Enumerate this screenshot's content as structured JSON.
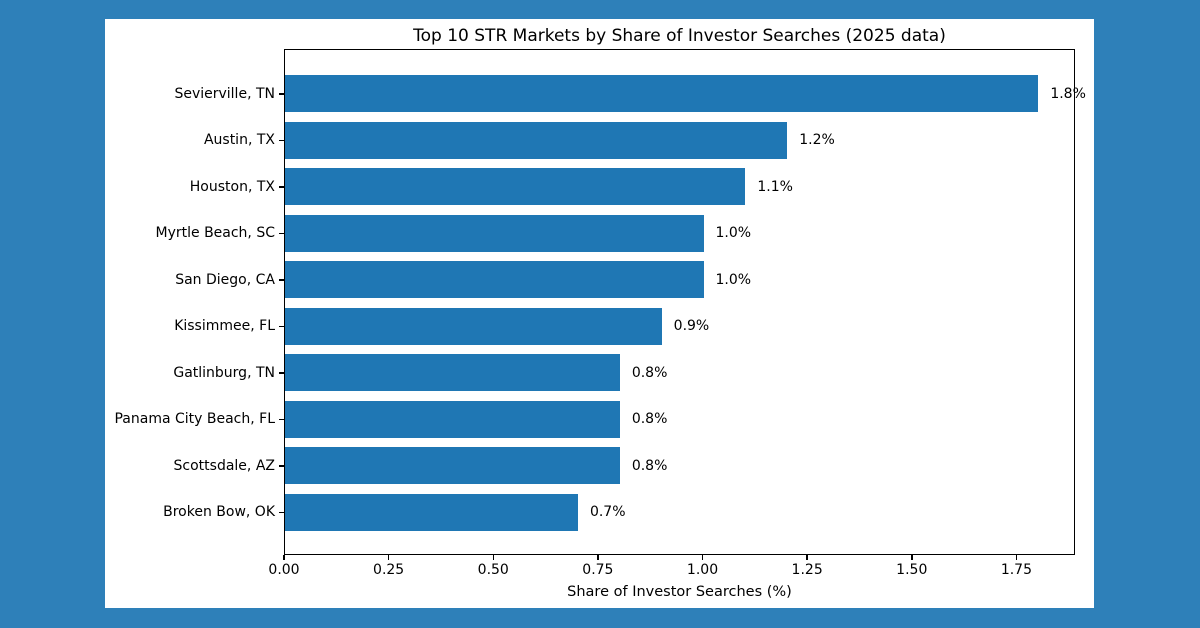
{
  "page": {
    "background_color": "#2e80b9",
    "card_color": "#ffffff",
    "text_color": "#000000",
    "axis_color": "#000000"
  },
  "chart_data": {
    "type": "bar",
    "orientation": "horizontal",
    "title": "Top 10 STR Markets by Share of Investor Searches (2025 data)",
    "xlabel": "Share of Investor Searches (%)",
    "ylabel": "",
    "categories": [
      "Sevierville, TN",
      "Austin, TX",
      "Houston, TX",
      "Myrtle Beach, SC",
      "San Diego, CA",
      "Kissimmee, FL",
      "Gatlinburg, TN",
      "Panama City Beach, FL",
      "Scottsdale, AZ",
      "Broken Bow, OK"
    ],
    "values": [
      1.8,
      1.2,
      1.1,
      1.0,
      1.0,
      0.9,
      0.8,
      0.8,
      0.8,
      0.7
    ],
    "value_labels": [
      "1.8%",
      "1.2%",
      "1.1%",
      "1.0%",
      "1.0%",
      "0.9%",
      "0.8%",
      "0.8%",
      "0.8%",
      "0.7%"
    ],
    "xlim": [
      0,
      1.89
    ],
    "xticks": [
      0,
      0.25,
      0.5,
      0.75,
      1.0,
      1.25,
      1.5,
      1.75
    ],
    "xtick_labels": [
      "0.00",
      "0.25",
      "0.50",
      "0.75",
      "1.00",
      "1.25",
      "1.50",
      "1.75"
    ],
    "bar_color": "#1f77b4",
    "grid": false,
    "legend_position": "none"
  }
}
